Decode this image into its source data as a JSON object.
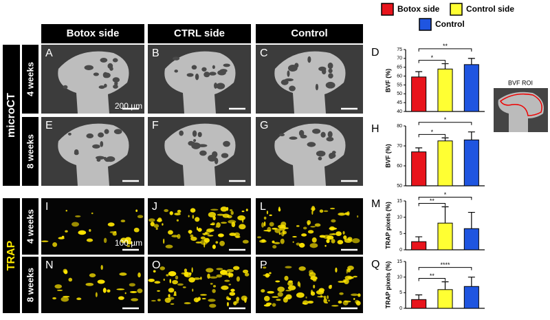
{
  "figure": {
    "legend": [
      {
        "name": "Botox side",
        "color": "#e8141c"
      },
      {
        "name": "Control side",
        "color": "#ffff33"
      },
      {
        "name": "Control",
        "color": "#1f55e0"
      }
    ],
    "columns": [
      "Botox side",
      "CTRL side",
      "Control"
    ],
    "sections": [
      {
        "title": "microCT",
        "rows": [
          "4 weeks",
          "8 weeks"
        ]
      },
      {
        "title": "TRAP",
        "rows": [
          "4 weeks",
          "8 weeks"
        ]
      }
    ],
    "panels": [
      [
        "A",
        "B",
        "C"
      ],
      [
        "E",
        "F",
        "G"
      ],
      [
        "I",
        "J",
        "L"
      ],
      [
        "N",
        "O",
        "P"
      ]
    ],
    "scale_labels": [
      "200 µm",
      "100 µm"
    ],
    "inset_title": "BVF ROI"
  },
  "chart_data": [
    {
      "type": "bar",
      "label": "D",
      "y_label": "BVF (%)",
      "values": [
        59.5,
        64,
        66.5
      ],
      "errors": [
        3,
        3,
        3.5
      ],
      "colors": [
        "#e8141c",
        "#ffff33",
        "#1f55e0"
      ],
      "ylim": [
        40,
        75
      ],
      "yticks": [
        40,
        45,
        50,
        55,
        60,
        65,
        70,
        75
      ],
      "significance": [
        {
          "from": 0,
          "to": 1,
          "label": "*"
        },
        {
          "from": 0,
          "to": 2,
          "label": "**"
        }
      ]
    },
    {
      "type": "bar",
      "label": "H",
      "y_label": "BVF (%)",
      "values": [
        67,
        72.5,
        73
      ],
      "errors": [
        2,
        1.5,
        4
      ],
      "colors": [
        "#e8141c",
        "#ffff33",
        "#1f55e0"
      ],
      "ylim": [
        50,
        80
      ],
      "yticks": [
        50,
        60,
        70,
        80
      ],
      "significance": [
        {
          "from": 0,
          "to": 1,
          "label": "*"
        },
        {
          "from": 0,
          "to": 2,
          "label": "*"
        }
      ]
    },
    {
      "type": "bar",
      "label": "M",
      "y_label": "TRAP pixels (%)",
      "values": [
        2.5,
        8.2,
        6.5
      ],
      "errors": [
        1.5,
        5,
        5
      ],
      "colors": [
        "#e8141c",
        "#ffff33",
        "#1f55e0"
      ],
      "ylim": [
        0,
        15
      ],
      "yticks": [
        0,
        5,
        10,
        15
      ],
      "significance": [
        {
          "from": 0,
          "to": 1,
          "label": "**"
        },
        {
          "from": 0,
          "to": 2,
          "label": "*"
        }
      ]
    },
    {
      "type": "bar",
      "label": "Q",
      "y_label": "TRAP pixels (%)",
      "values": [
        2.8,
        6,
        7
      ],
      "errors": [
        1.5,
        2.5,
        3
      ],
      "colors": [
        "#e8141c",
        "#ffff33",
        "#1f55e0"
      ],
      "ylim": [
        0,
        15
      ],
      "yticks": [
        0,
        5,
        10,
        15
      ],
      "significance": [
        {
          "from": 0,
          "to": 1,
          "label": "**"
        },
        {
          "from": 0,
          "to": 2,
          "label": "****"
        }
      ]
    }
  ]
}
